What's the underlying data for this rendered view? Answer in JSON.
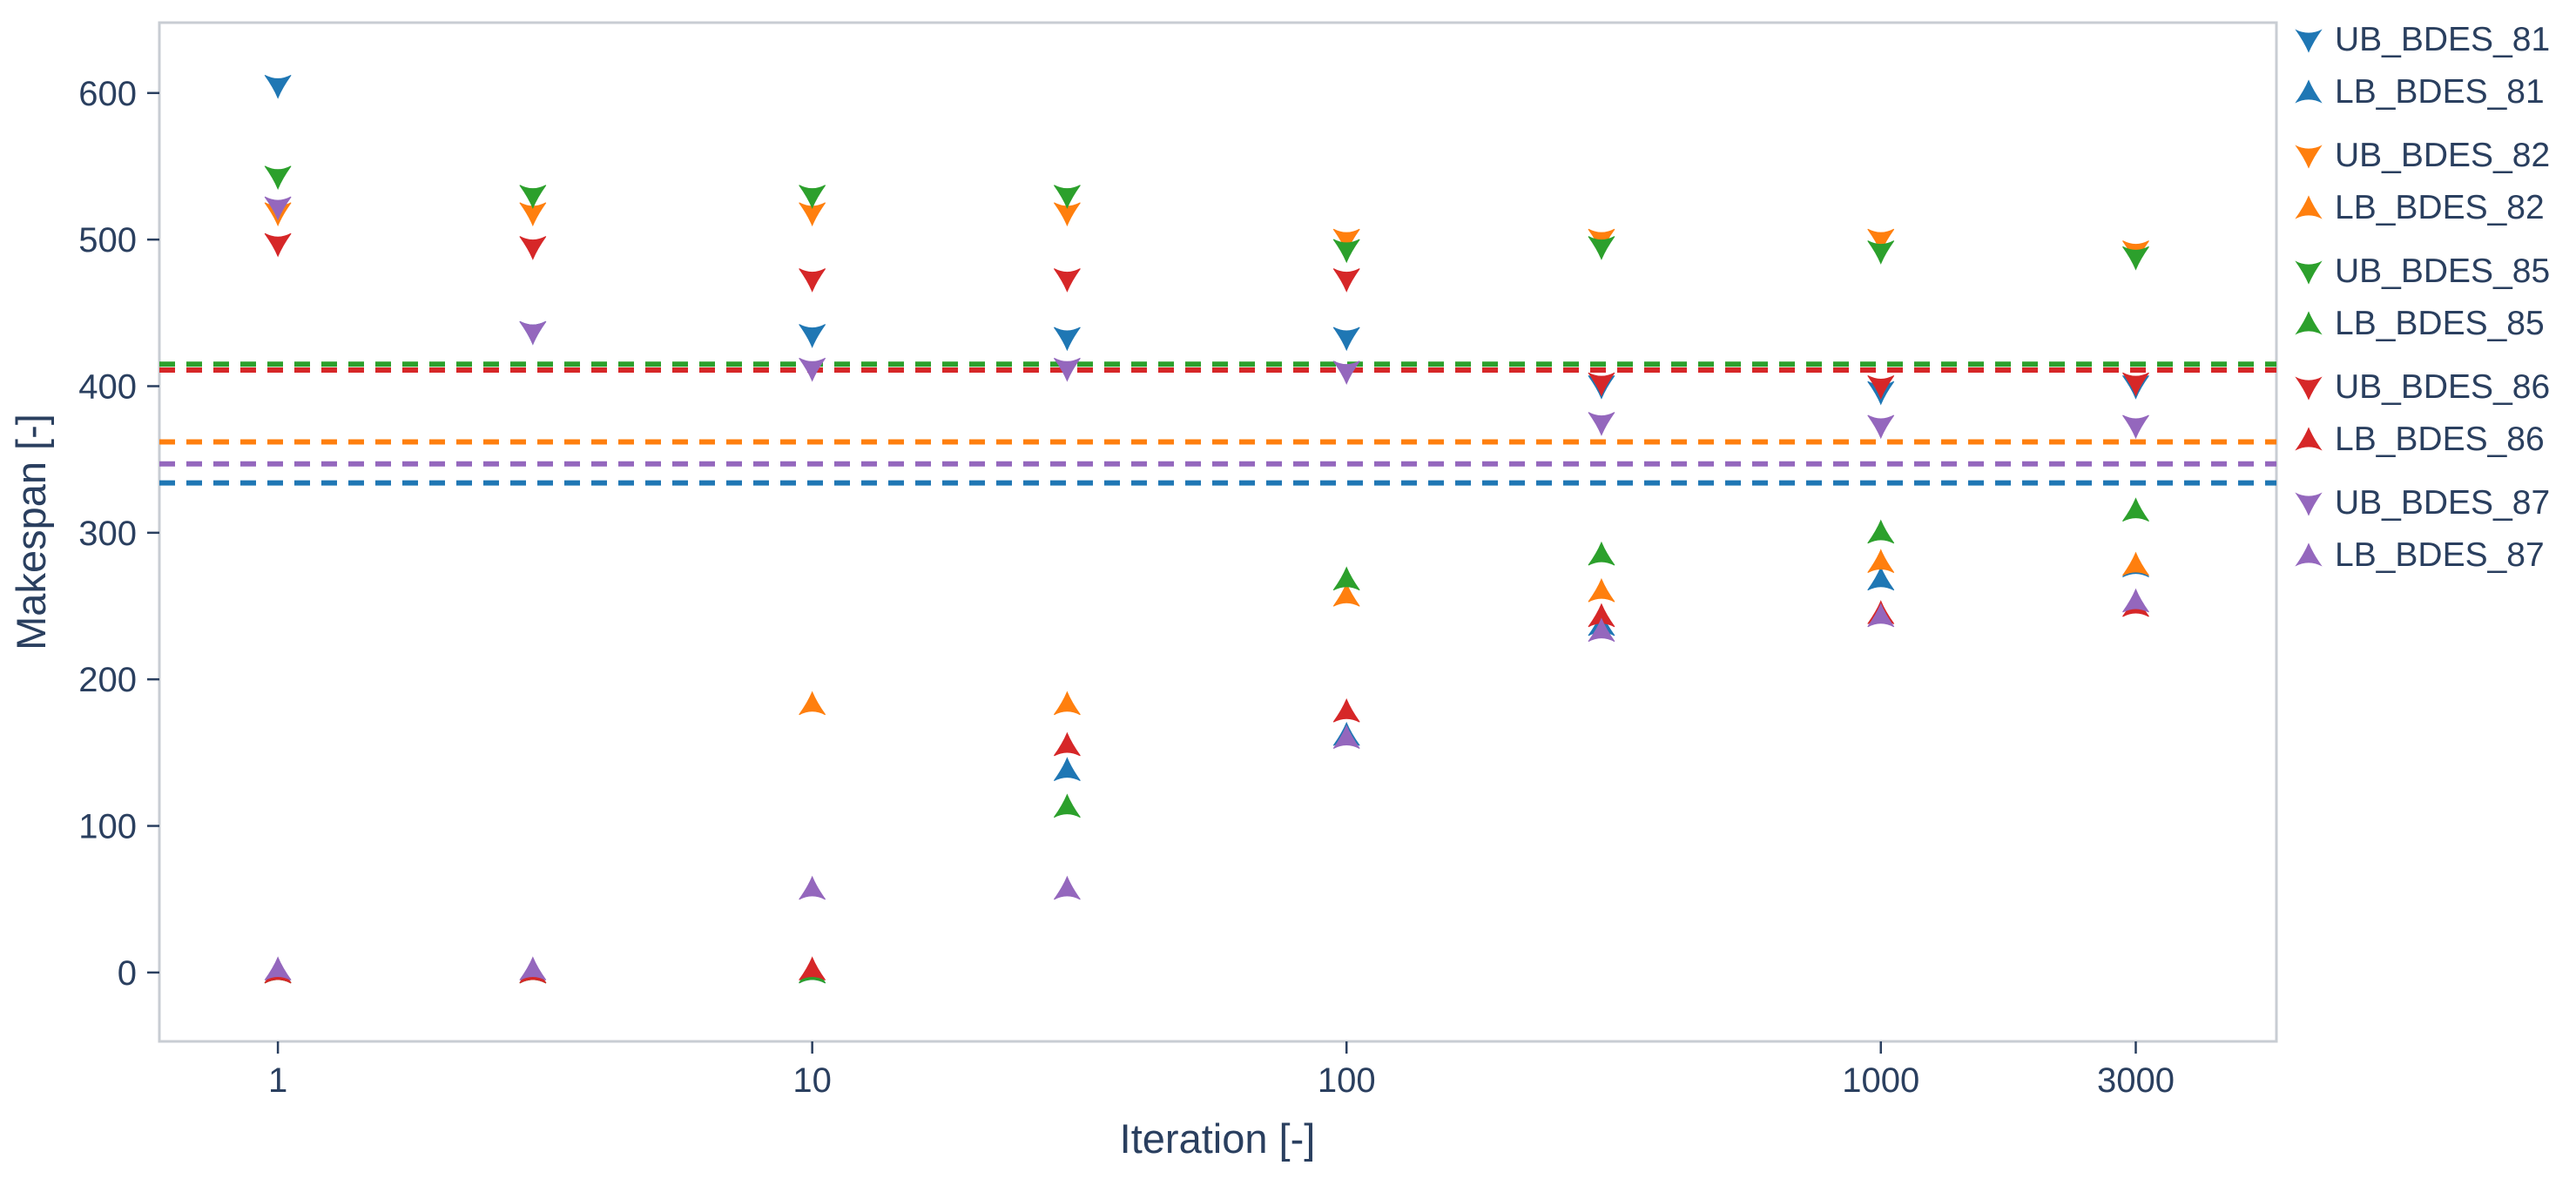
{
  "chart_data": {
    "type": "scatter",
    "title": "",
    "xlabel": "Iteration [-]",
    "ylabel": "Makespan [-]",
    "x_scale": "log",
    "grid": false,
    "legend_position": "right",
    "xlim": [
      0.6,
      5500
    ],
    "ylim": [
      -47,
      648
    ],
    "x_ticks": [
      1,
      10,
      100,
      1000,
      3000
    ],
    "x_tick_labels": [
      "1",
      "10",
      "100",
      "1000",
      "3000"
    ],
    "y_ticks": [
      0,
      100,
      200,
      300,
      400,
      500,
      600
    ],
    "x": [
      1,
      3,
      10,
      30,
      100,
      300,
      1000,
      3000
    ],
    "series": [
      {
        "name": "UB_BDES_81",
        "marker": "triangle-down",
        "color": "#1f77b4",
        "values": [
          605,
          437,
          435,
          433,
          433,
          400,
          396,
          400
        ]
      },
      {
        "name": "LB_BDES_81",
        "marker": "triangle-up",
        "color": "#1f77b4",
        "values": [
          0,
          0,
          0,
          138,
          162,
          237,
          268,
          277
        ]
      },
      {
        "name": "UB_BDES_82",
        "marker": "triangle-down",
        "color": "#ff7f0e",
        "values": [
          518,
          518,
          518,
          518,
          500,
          500,
          500,
          492
        ]
      },
      {
        "name": "LB_BDES_82",
        "marker": "triangle-up",
        "color": "#ff7f0e",
        "values": [
          0,
          0,
          183,
          183,
          257,
          260,
          280,
          278
        ]
      },
      {
        "name": "UB_BDES_85",
        "marker": "triangle-down",
        "color": "#2ca02c",
        "values": [
          543,
          530,
          530,
          530,
          493,
          495,
          492,
          488
        ]
      },
      {
        "name": "LB_BDES_85",
        "marker": "triangle-up",
        "color": "#2ca02c",
        "values": [
          0,
          0,
          0,
          113,
          268,
          285,
          300,
          315
        ]
      },
      {
        "name": "UB_BDES_86",
        "marker": "triangle-down",
        "color": "#d62728",
        "values": [
          497,
          495,
          473,
          473,
          473,
          402,
          400,
          402
        ]
      },
      {
        "name": "LB_BDES_86",
        "marker": "triangle-up",
        "color": "#d62728",
        "values": [
          0,
          0,
          2,
          155,
          178,
          243,
          245,
          250
        ]
      },
      {
        "name": "UB_BDES_87",
        "marker": "triangle-down",
        "color": "#9467bd",
        "values": [
          522,
          437,
          412,
          412,
          410,
          375,
          373,
          373
        ]
      },
      {
        "name": "LB_BDES_87",
        "marker": "triangle-up",
        "color": "#9467bd",
        "values": [
          2,
          2,
          57,
          57,
          160,
          233,
          243,
          253
        ]
      }
    ],
    "reference_lines": [
      {
        "color": "#2ca02c",
        "y": 415,
        "style": "dashed"
      },
      {
        "color": "#d62728",
        "y": 411,
        "style": "dashed"
      },
      {
        "color": "#ff7f0e",
        "y": 362,
        "style": "dashed"
      },
      {
        "color": "#9467bd",
        "y": 347,
        "style": "dashed"
      },
      {
        "color": "#1f77b4",
        "y": 334,
        "style": "dashed"
      }
    ],
    "colors": {
      "axis_text": "#2a3f5f",
      "plot_border": "#c8cdd3",
      "background": "#ffffff"
    }
  }
}
